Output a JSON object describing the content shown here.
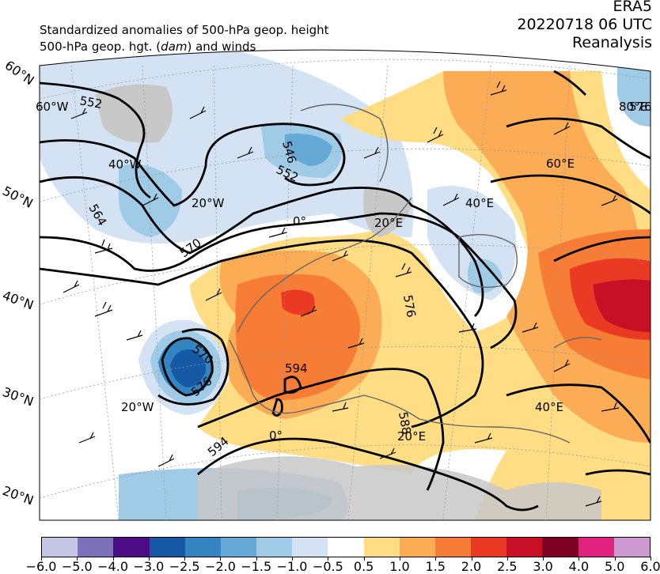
{
  "header": {
    "line1": "Standardized anomalies of 500-hPa geop. height",
    "line2_pre": "500-hPa geop. hgt. (",
    "line2_unit": "dam",
    "line2_post": ") and winds",
    "dataset": "ERA5",
    "datetime": "20220718 06 UTC",
    "type": "Reanalysis"
  },
  "map": {
    "lat_labels": [
      "60°N",
      "50°N",
      "40°N",
      "30°N",
      "20°N"
    ],
    "lon_labels_top": [
      "60°W",
      "40°W",
      "20°W",
      "0°",
      "20°E",
      "40°E",
      "60°E",
      "80°E"
    ],
    "lon_labels_bottom": [
      "20°W",
      "0°",
      "20°E",
      "40°E"
    ],
    "contour_labels": [
      "552",
      "546",
      "552",
      "564",
      "570",
      "570",
      "576",
      "594",
      "576",
      "594",
      "576",
      "588"
    ]
  },
  "colorbar": {
    "colors": [
      "#c5c5e6",
      "#7d72b9",
      "#4b0c85",
      "#1558a3",
      "#3484c2",
      "#65a9d6",
      "#a0cbe6",
      "#d3e3f4",
      "#ffffff",
      "#fedd84",
      "#fcac54",
      "#f77c35",
      "#ea3a23",
      "#c70f26",
      "#7b0022",
      "#e0217d",
      "#cc99d1"
    ],
    "ticks": [
      "−6.0",
      "−5.0",
      "−4.0",
      "−3.0",
      "−2.5",
      "−2.0",
      "−1.5",
      "−1.0",
      "−0.5",
      "0.5",
      "1.0",
      "1.5",
      "2.0",
      "2.5",
      "3.0",
      "4.0",
      "5.0",
      "6.0"
    ]
  }
}
